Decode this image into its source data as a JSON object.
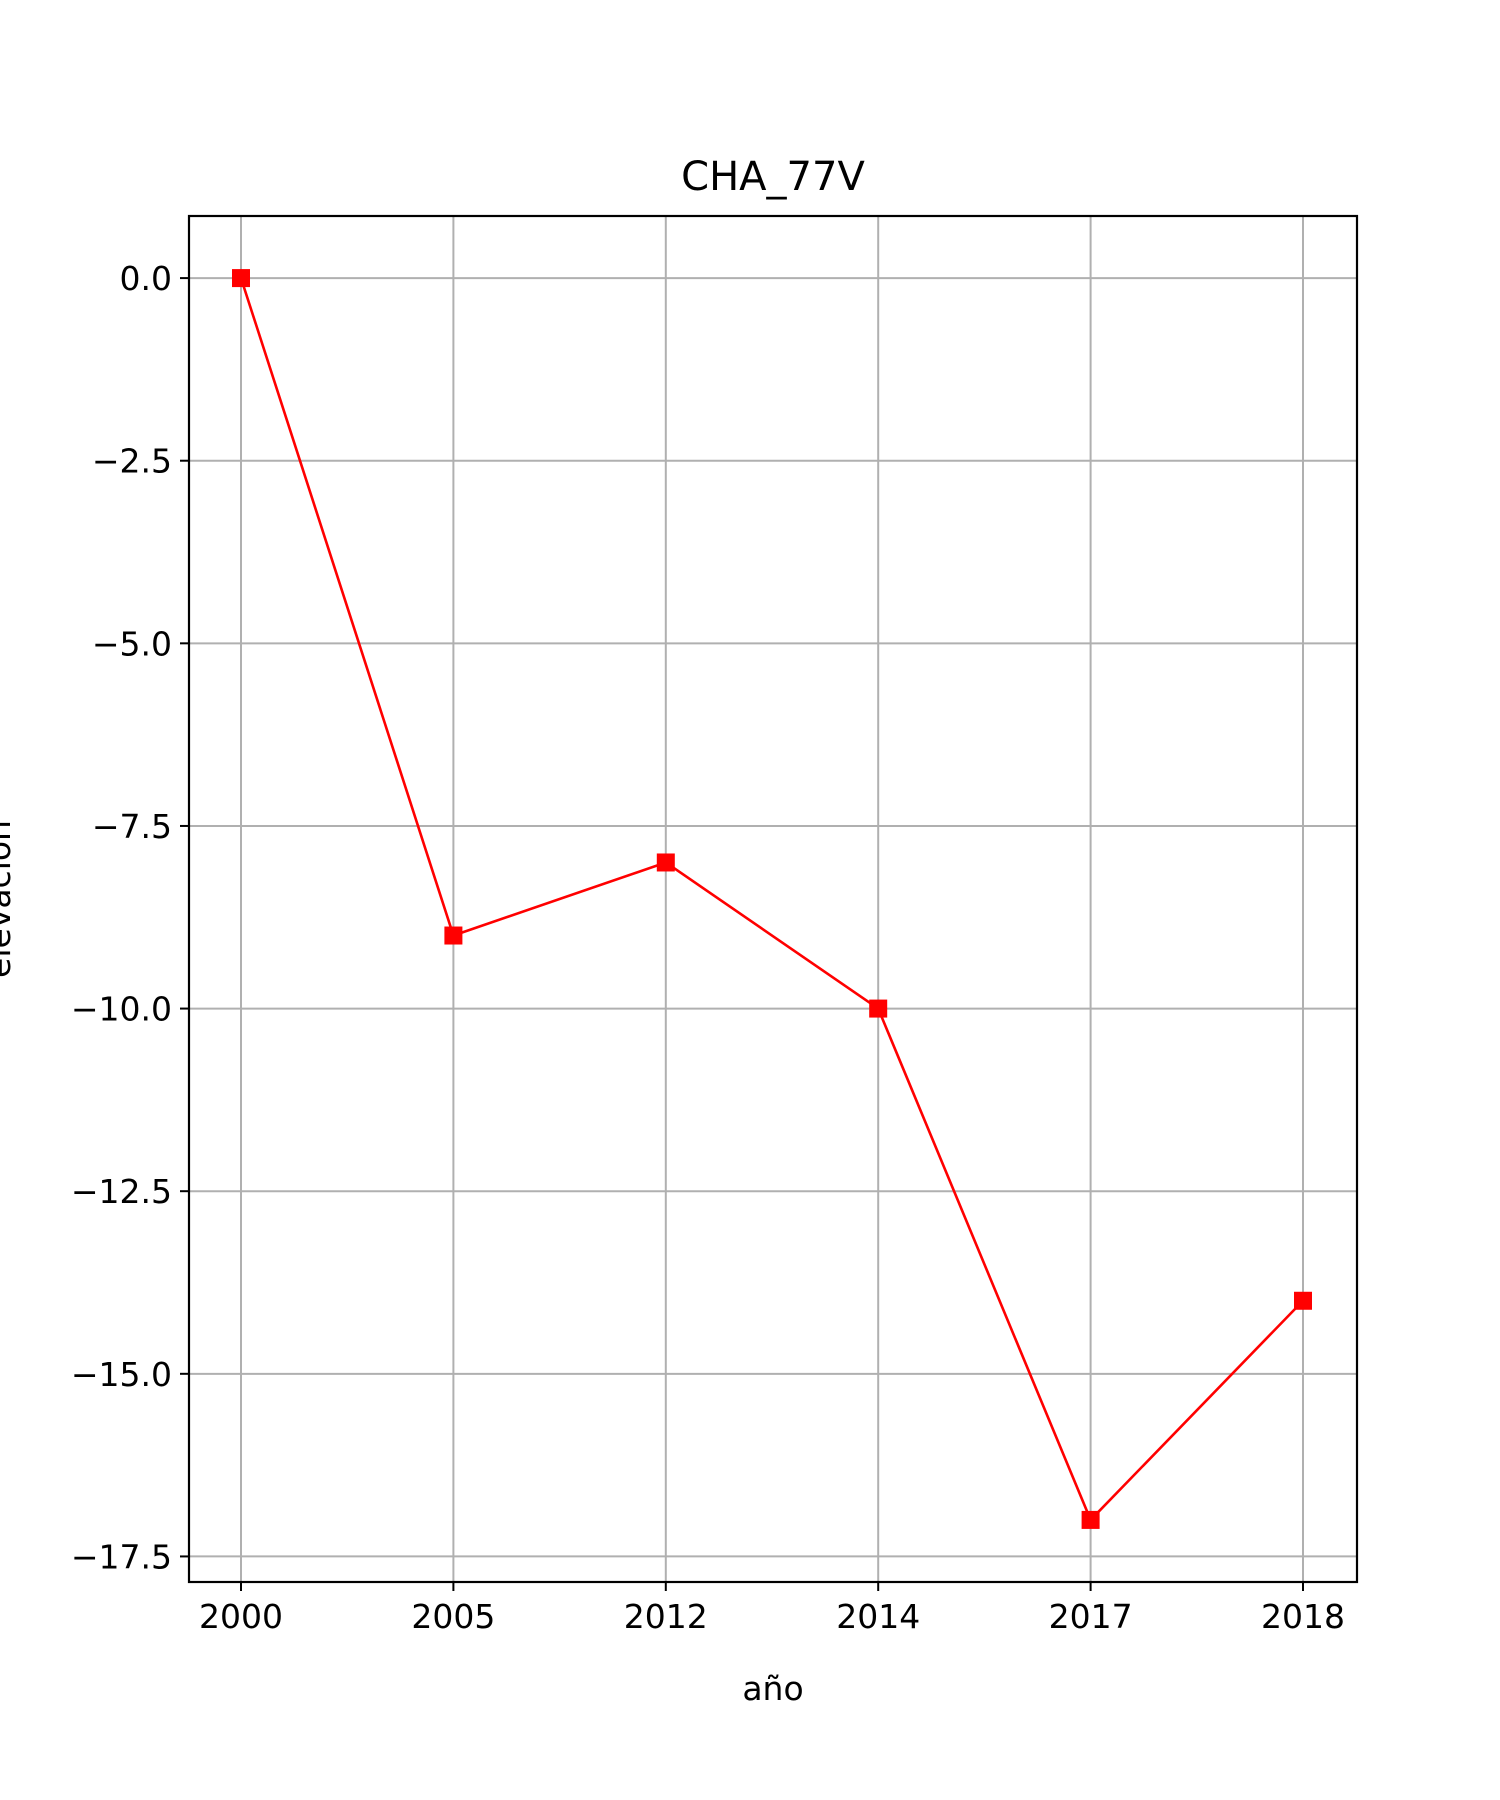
{
  "chart_data": {
    "type": "line",
    "title": "CHA_77V",
    "xlabel": "año",
    "ylabel": "elevación",
    "categories": [
      "2000",
      "2005",
      "2012",
      "2014",
      "2017",
      "2018"
    ],
    "series": [
      {
        "values": [
          0,
          -9,
          -8,
          -10,
          -17,
          -14
        ],
        "color": "#ff0000",
        "marker": "square"
      }
    ],
    "yticks": [
      "0.0",
      "−2.5",
      "−5.0",
      "−7.5",
      "−10.0",
      "−12.5",
      "−15.0",
      "−17.5"
    ],
    "ylim": [
      -17.85,
      0.85
    ],
    "grid": true,
    "grid_color": "#b0b0b0"
  }
}
